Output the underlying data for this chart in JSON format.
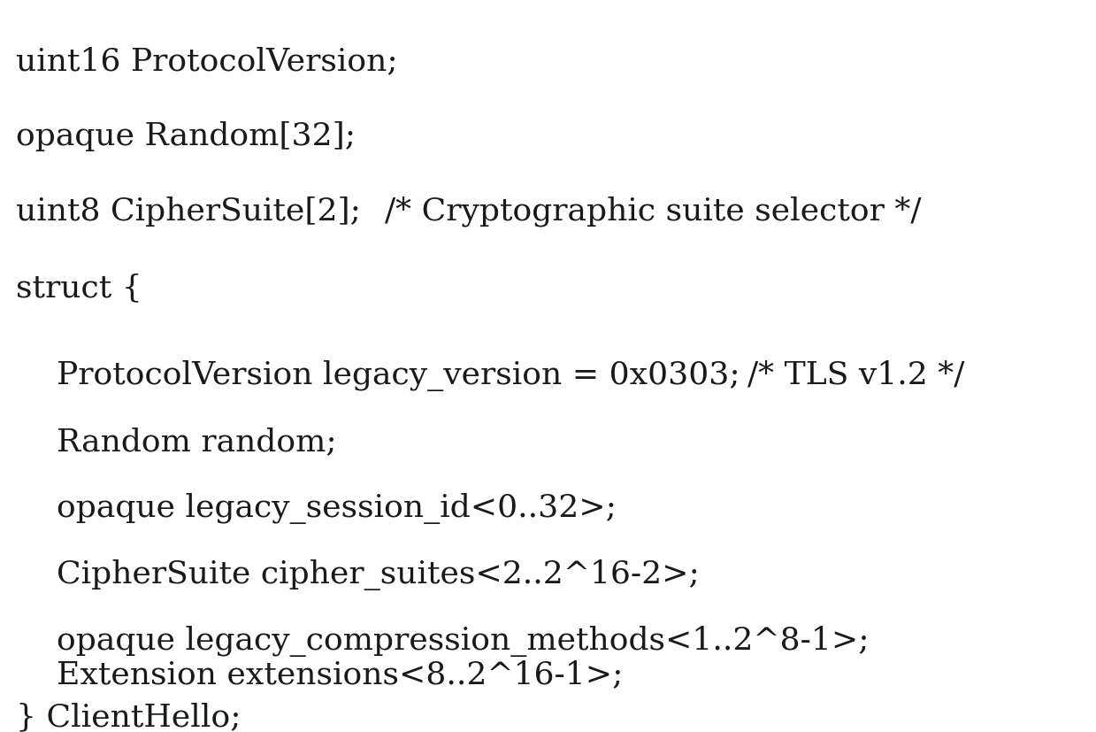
{
  "background_color": "#ffffff",
  "figsize": [
    12.39,
    8.28
  ],
  "dpi": 100,
  "font_size": 26,
  "text_color": "#1a1a1a",
  "lines": [
    {
      "text": "uint16 ProtocolVersion;",
      "indent": 0,
      "comment": null,
      "comment_tab": null
    },
    {
      "text": "opaque Random[32];",
      "indent": 0,
      "comment": null,
      "comment_tab": null
    },
    {
      "text": "uint8 CipherSuite[2];",
      "indent": 0,
      "comment": "/* Cryptographic suite selector */",
      "comment_tab": 0.36
    },
    {
      "text": "struct {",
      "indent": 0,
      "comment": null,
      "comment_tab": null
    },
    {
      "text": "    ProtocolVersion legacy_version = 0x0303;",
      "indent": 0,
      "comment": "/* TLS v1.2 */",
      "comment_tab": 0.69
    },
    {
      "text": "    Random random;",
      "indent": 0,
      "comment": null,
      "comment_tab": null
    },
    {
      "text": "    opaque legacy_session_id<0..32>;",
      "indent": 0,
      "comment": null,
      "comment_tab": null
    },
    {
      "text": "    CipherSuite cipher_suites<2..2^16-2>;",
      "indent": 0,
      "comment": null,
      "comment_tab": null
    },
    {
      "text": "    opaque legacy_compression_methods<1..2^8-1>;",
      "indent": 0,
      "comment": null,
      "comment_tab": null
    },
    {
      "text": "    Extension extensions<8..2^16-1>;",
      "indent": 0,
      "comment": null,
      "comment_tab": null
    },
    {
      "text": "} ClientHello;",
      "indent": 0,
      "comment": null,
      "comment_tab": null
    }
  ]
}
